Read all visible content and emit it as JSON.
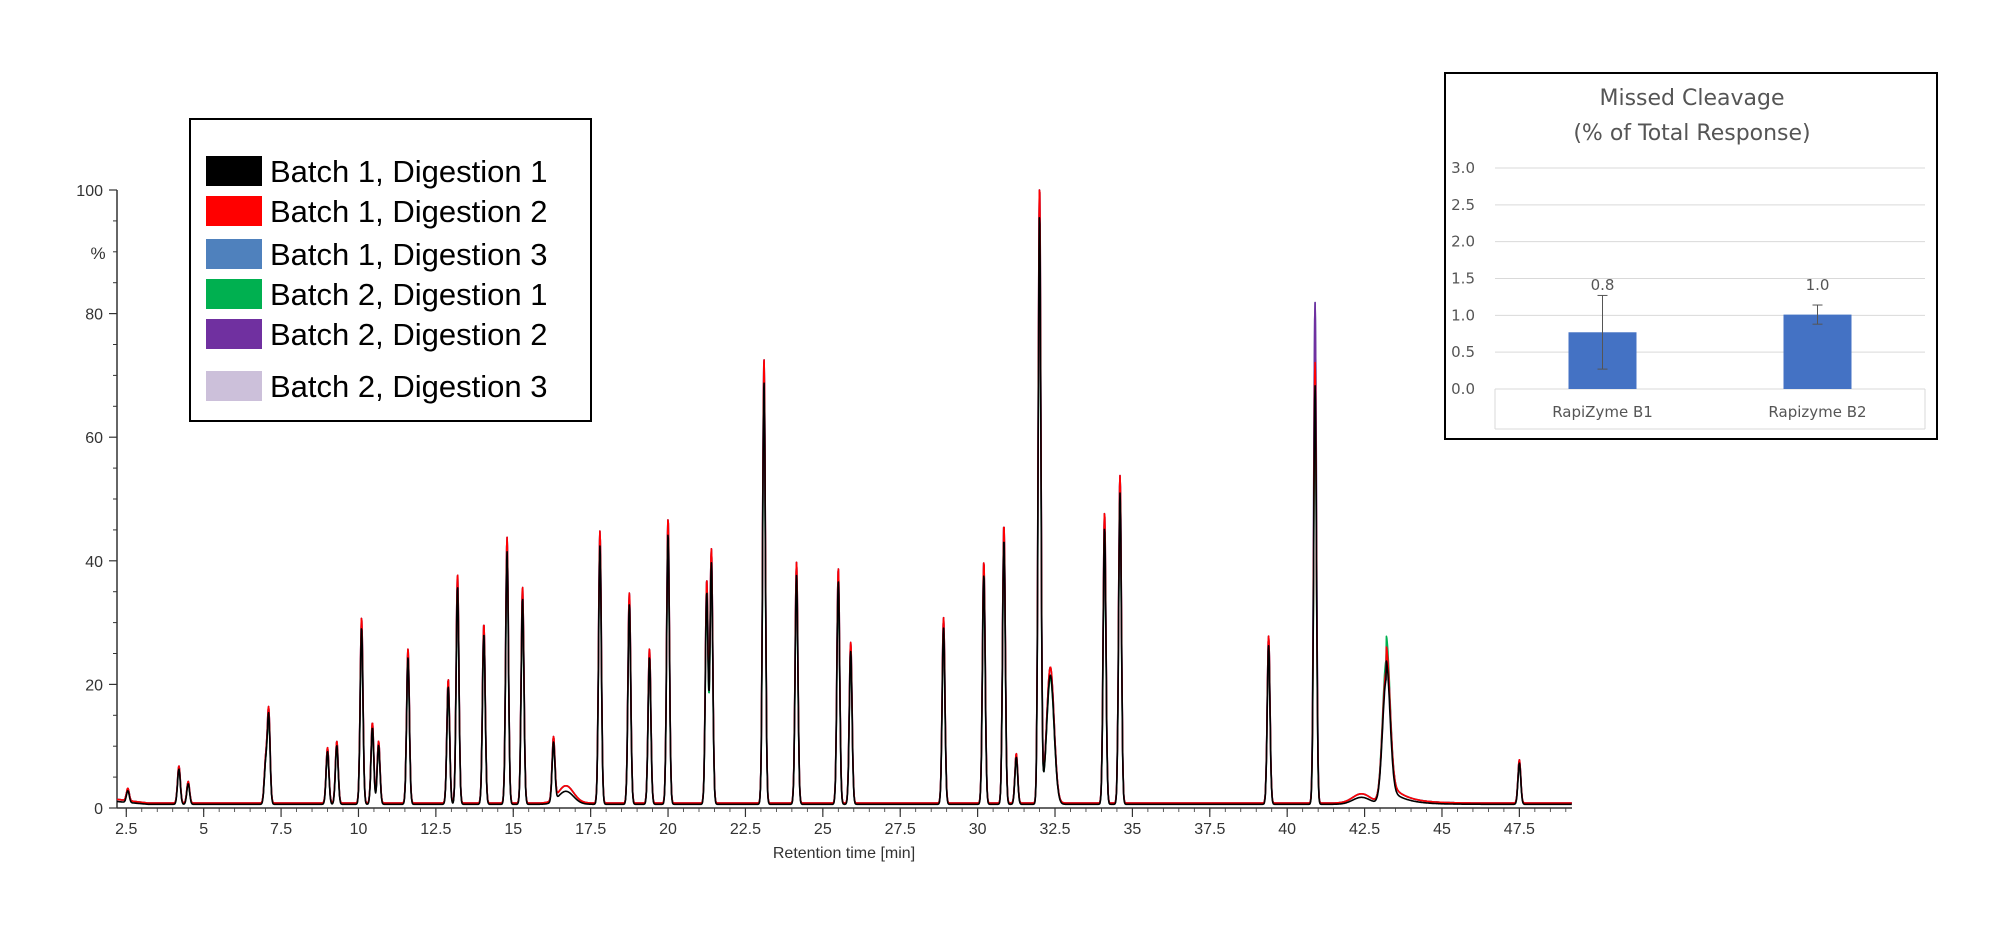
{
  "chart_data": [
    {
      "type": "line",
      "xlabel": "Retention time [min]",
      "ylabel": "%",
      "xlim": [
        2.2,
        49.2
      ],
      "ylim": [
        0,
        100
      ],
      "x_ticks": [
        "2.5",
        "5",
        "7.5",
        "10",
        "12.5",
        "15",
        "17.5",
        "20",
        "22.5",
        "25",
        "27.5",
        "30",
        "32.5",
        "35",
        "37.5",
        "40",
        "42.5",
        "45",
        "47.5"
      ],
      "y_ticks": [
        "0",
        "20",
        "40",
        "60",
        "80",
        "100"
      ],
      "grid": false,
      "legend": {
        "placement": "top-left",
        "entries": [
          {
            "name": "Batch 1, Digestion 1",
            "color": "#000000"
          },
          {
            "name": "Batch 1, Digestion 2",
            "color": "#ff0000"
          },
          {
            "name": "Batch 1, Digestion 3",
            "color": "#4f81bd"
          },
          {
            "name": "Batch 2, Digestion 1",
            "color": "#00b050"
          },
          {
            "name": "Batch 2, Digestion 2",
            "color": "#7030a0"
          },
          {
            "name": "Batch 2, Digestion 3",
            "color": "#ccc0da"
          }
        ]
      },
      "peaks": [
        {
          "x": 2.55,
          "y": 2
        },
        {
          "x": 4.2,
          "y": 6
        },
        {
          "x": 4.5,
          "y": 3.5
        },
        {
          "x": 7.0,
          "y": 6.5
        },
        {
          "x": 7.1,
          "y": 15
        },
        {
          "x": 9.0,
          "y": 9
        },
        {
          "x": 9.3,
          "y": 10
        },
        {
          "x": 10.1,
          "y": 30
        },
        {
          "x": 10.45,
          "y": 13
        },
        {
          "x": 10.65,
          "y": 10
        },
        {
          "x": 11.6,
          "y": 25
        },
        {
          "x": 12.9,
          "y": 20
        },
        {
          "x": 13.2,
          "y": 37
        },
        {
          "x": 14.05,
          "y": 29
        },
        {
          "x": 14.8,
          "y": 43
        },
        {
          "x": 15.3,
          "y": 35
        },
        {
          "x": 16.3,
          "y": 10
        },
        {
          "x": 17.8,
          "y": 44
        },
        {
          "x": 18.75,
          "y": 34
        },
        {
          "x": 19.4,
          "y": 25
        },
        {
          "x": 20.0,
          "y": 46
        },
        {
          "x": 21.25,
          "y": 36
        },
        {
          "x": 21.4,
          "y": 41
        },
        {
          "x": 23.1,
          "y": 72
        },
        {
          "x": 24.15,
          "y": 39
        },
        {
          "x": 25.5,
          "y": 38
        },
        {
          "x": 25.9,
          "y": 26
        },
        {
          "x": 28.9,
          "y": 30
        },
        {
          "x": 30.2,
          "y": 39
        },
        {
          "x": 30.85,
          "y": 45
        },
        {
          "x": 31.25,
          "y": 8
        },
        {
          "x": 32.0,
          "y": 100
        },
        {
          "x": 32.35,
          "y": 22
        },
        {
          "x": 34.1,
          "y": 47
        },
        {
          "x": 34.6,
          "y": 53
        },
        {
          "x": 39.4,
          "y": 27
        },
        {
          "x": 40.9,
          "y": 81
        },
        {
          "x": 43.2,
          "y": 25
        },
        {
          "x": 47.5,
          "y": 7
        }
      ]
    },
    {
      "type": "bar",
      "title": [
        "Missed Cleavage",
        "(% of Total Response)"
      ],
      "categories": [
        "RapiZyme B1",
        "Rapizyme B2"
      ],
      "values": [
        0.77,
        1.01
      ],
      "data_labels": [
        "0.8",
        "1.0"
      ],
      "error": [
        0.5,
        0.13
      ],
      "ylim": [
        0,
        3.0
      ],
      "y_ticks": [
        "0.0",
        "0.5",
        "1.0",
        "1.5",
        "2.0",
        "2.5",
        "3.0"
      ],
      "grid": true,
      "bar_color": "#4472c4"
    }
  ]
}
